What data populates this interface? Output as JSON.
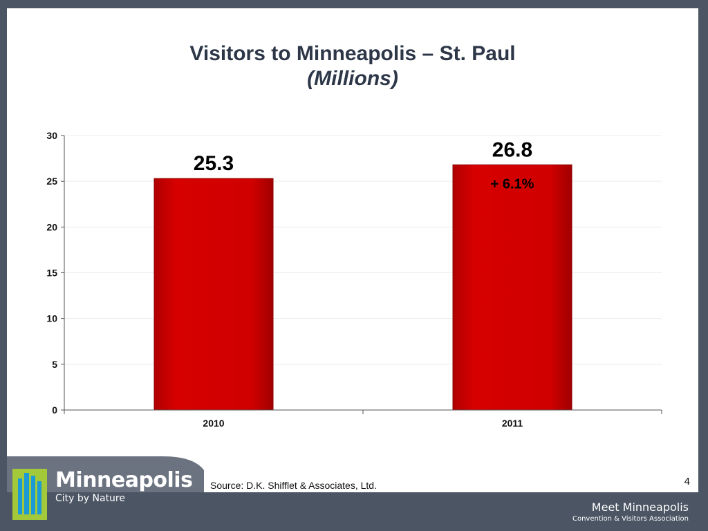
{
  "slide": {
    "title_line1": "Visitors to Minneapolis – St. Paul",
    "title_line2": "(Millions)",
    "source": "Source: D.K. Shifflet & Associates, Ltd.",
    "page_number": "4",
    "logo": {
      "name": "Minneapolis",
      "tagline": "City by Nature"
    },
    "organization": {
      "name": "Meet Minneapolis",
      "subtitle": "Convention & Visitors Association"
    }
  },
  "colors": {
    "bar": "#cc0000",
    "bar_edge": "#8f0000",
    "title": "#2d3748",
    "logo_green": "#a3c93a",
    "logo_blue": "#1b9ad6"
  },
  "chart_data": {
    "type": "bar",
    "categories": [
      "2010",
      "2011"
    ],
    "values": [
      25.3,
      26.8
    ],
    "data_labels": [
      "25.3",
      "26.8"
    ],
    "annotations": [
      {
        "category": "2011",
        "text": "+ 6.1%"
      }
    ],
    "title": "Visitors to Minneapolis – St. Paul",
    "subtitle": "(Millions)",
    "xlabel": "",
    "ylabel": "",
    "ylim": [
      0,
      30
    ],
    "yticks": [
      0,
      5,
      10,
      15,
      20,
      25,
      30
    ],
    "grid": true,
    "legend": "none"
  }
}
